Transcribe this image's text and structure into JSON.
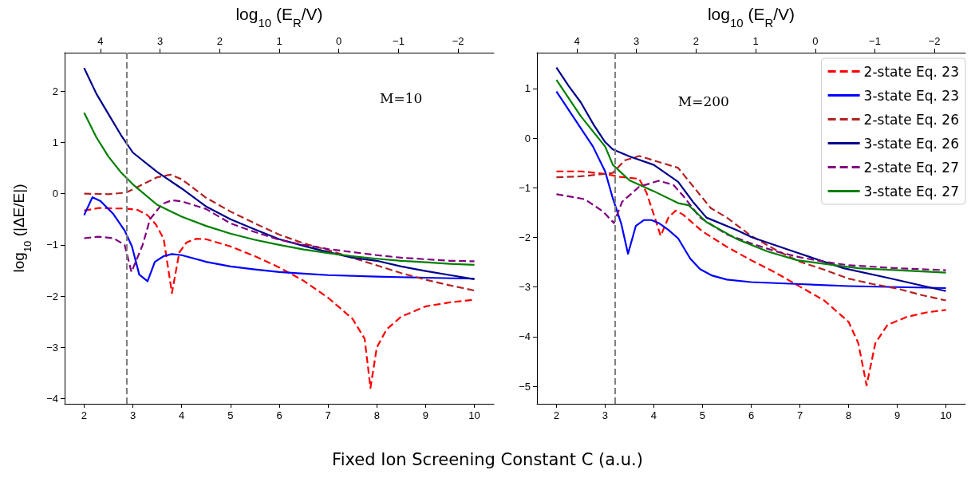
{
  "chart_data": [
    {
      "type": "line",
      "xlabel": "Fixed Ion Screening Constant C (a.u.)",
      "ylabel": "log$_{10}$ (|ΔE/E|)",
      "x2label": "log$_{10}$ (E$_{R}$/V)",
      "annotations": [
        "M=10"
      ],
      "xlim": [
        1.6,
        10.4
      ],
      "xticks": [
        2,
        3,
        4,
        5,
        6,
        7,
        8,
        9,
        10
      ],
      "x2lim": [
        4.6,
        -2.6
      ],
      "x2ticks": [
        4,
        3,
        2,
        1,
        0,
        -1,
        -2
      ],
      "ylim": [
        -4.1,
        2.75
      ],
      "yticks": [
        {
          "value": -4,
          "label": "−4"
        },
        {
          "value": -3,
          "label": "−3"
        },
        {
          "value": -2,
          "label": "−2"
        },
        {
          "value": -1,
          "label": "−1"
        },
        0,
        1,
        2
      ],
      "grid": false,
      "legend": false,
      "marker": "none",
      "ref_lines": [
        {
          "axis": "x",
          "value": 2.87,
          "color": "#808080",
          "line_style": "dashed"
        }
      ],
      "series": [
        {
          "color": "#ff0000",
          "line_style": "dashed",
          "x": [
            2,
            2.3,
            2.6,
            2.85,
            3.1,
            3.3,
            3.47,
            3.63,
            3.8,
            3.95,
            4.1,
            4.3,
            4.5,
            5,
            5.5,
            6,
            6.5,
            7,
            7.5,
            7.75,
            7.87,
            8,
            8.2,
            8.5,
            9,
            9.5,
            10
          ],
          "values": [
            -0.33,
            -0.28,
            -0.29,
            -0.29,
            -0.32,
            -0.42,
            -0.6,
            -0.88,
            -1.94,
            -1.15,
            -0.95,
            -0.88,
            -0.89,
            -1.03,
            -1.22,
            -1.44,
            -1.7,
            -2.03,
            -2.44,
            -2.83,
            -3.79,
            -3.0,
            -2.65,
            -2.4,
            -2.2,
            -2.12,
            -2.07
          ]
        },
        {
          "color": "#0000ff",
          "line_style": "solid",
          "x": [
            2,
            2.17,
            2.33,
            2.6,
            2.83,
            2.98,
            3.13,
            3.3,
            3.45,
            3.63,
            3.8,
            4,
            4.5,
            5,
            5.5,
            6,
            6.5,
            7,
            8,
            9,
            10
          ],
          "values": [
            -0.42,
            -0.07,
            -0.14,
            -0.4,
            -0.72,
            -1.03,
            -1.58,
            -1.71,
            -1.33,
            -1.22,
            -1.18,
            -1.2,
            -1.33,
            -1.42,
            -1.48,
            -1.53,
            -1.56,
            -1.59,
            -1.62,
            -1.64,
            -1.66
          ]
        },
        {
          "color": "#b22222",
          "line_style": "dashed",
          "x": [
            2,
            2.5,
            2.86,
            3.2,
            3.5,
            3.77,
            4,
            4.5,
            5,
            5.5,
            6,
            6.5,
            7,
            7.5,
            8,
            8.5,
            9,
            9.5,
            10
          ],
          "values": [
            0.0,
            -0.01,
            0.02,
            0.18,
            0.32,
            0.37,
            0.28,
            -0.08,
            -0.35,
            -0.58,
            -0.8,
            -0.97,
            -1.1,
            -1.25,
            -1.4,
            -1.55,
            -1.68,
            -1.79,
            -1.89
          ]
        },
        {
          "color": "#00008b",
          "line_style": "solid",
          "x": [
            2,
            2.25,
            2.5,
            2.75,
            3,
            3.5,
            4,
            4.5,
            5,
            5.5,
            6,
            6.5,
            7,
            7.5,
            8,
            8.5,
            9,
            9.5,
            10
          ],
          "values": [
            2.45,
            1.95,
            1.55,
            1.15,
            0.8,
            0.42,
            0.1,
            -0.25,
            -0.5,
            -0.7,
            -0.89,
            -1.02,
            -1.14,
            -1.25,
            -1.31,
            -1.42,
            -1.51,
            -1.59,
            -1.67
          ]
        },
        {
          "color": "#800080",
          "line_style": "dashed",
          "x": [
            2,
            2.3,
            2.6,
            2.83,
            2.97,
            3.2,
            3.35,
            3.6,
            3.8,
            4,
            4.5,
            5,
            5.5,
            6,
            6.5,
            7,
            7.5,
            8,
            8.5,
            9,
            9.5,
            10
          ],
          "values": [
            -0.87,
            -0.84,
            -0.87,
            -1.0,
            -1.53,
            -1.0,
            -0.5,
            -0.2,
            -0.13,
            -0.15,
            -0.3,
            -0.58,
            -0.75,
            -0.9,
            -1.0,
            -1.08,
            -1.14,
            -1.2,
            -1.25,
            -1.28,
            -1.31,
            -1.32
          ]
        },
        {
          "color": "#008000",
          "line_style": "solid",
          "x": [
            2,
            2.25,
            2.5,
            2.75,
            3,
            3.5,
            4,
            4.5,
            5,
            5.5,
            6,
            6.5,
            7,
            7.5,
            8,
            8.5,
            9,
            9.5,
            10
          ],
          "values": [
            1.58,
            1.1,
            0.72,
            0.42,
            0.18,
            -0.22,
            -0.45,
            -0.63,
            -0.78,
            -0.9,
            -1.0,
            -1.09,
            -1.16,
            -1.22,
            -1.27,
            -1.31,
            -1.34,
            -1.37,
            -1.39
          ]
        }
      ]
    },
    {
      "type": "line",
      "x2label": "log$_{10}$ (E$_{R}$/V)",
      "annotations": [
        "M=200"
      ],
      "xlim": [
        1.6,
        10.4
      ],
      "xticks": [
        2,
        3,
        4,
        5,
        6,
        7,
        8,
        9,
        10
      ],
      "x2lim": [
        4.67,
        -2.52
      ],
      "x2ticks": [
        4,
        3,
        2,
        1,
        0,
        -1,
        -2
      ],
      "ylim": [
        -5.35,
        1.72
      ],
      "yticks": [
        {
          "value": -5,
          "label": "−5"
        },
        {
          "value": -4,
          "label": "−4"
        },
        {
          "value": -3,
          "label": "−3"
        },
        {
          "value": -2,
          "label": "−2"
        },
        {
          "value": -1,
          "label": "−1"
        },
        0,
        1
      ],
      "grid": false,
      "legend": "top right",
      "marker": "none",
      "ref_lines": [
        {
          "axis": "x",
          "value": 3.2,
          "color": "#808080",
          "line_style": "dashed"
        }
      ],
      "series": [
        {
          "name": "2-state Eq. 23",
          "color": "#ff0000",
          "line_style": "dashed",
          "x": [
            2,
            2.5,
            3,
            3.3,
            3.7,
            3.85,
            4,
            4.14,
            4.3,
            4.45,
            4.6,
            5,
            5.5,
            6,
            6.5,
            7,
            7.5,
            8,
            8.2,
            8.37,
            8.55,
            8.8,
            9.2,
            9.6,
            10
          ],
          "values": [
            -0.67,
            -0.67,
            -0.72,
            -0.78,
            -0.82,
            -1.1,
            -1.54,
            -1.97,
            -1.6,
            -1.46,
            -1.54,
            -1.88,
            -2.19,
            -2.46,
            -2.71,
            -2.99,
            -3.27,
            -3.7,
            -4.13,
            -4.98,
            -4.13,
            -3.76,
            -3.6,
            -3.51,
            -3.46
          ]
        },
        {
          "name": "3-state Eq. 23",
          "color": "#0000ff",
          "line_style": "solid",
          "x": [
            2,
            2.5,
            2.75,
            3,
            3.16,
            3.33,
            3.47,
            3.63,
            3.8,
            3.95,
            4.1,
            4.3,
            4.5,
            4.75,
            4.95,
            5.2,
            5.5,
            6,
            7,
            8,
            9,
            10
          ],
          "values": [
            0.94,
            0.2,
            -0.17,
            -0.67,
            -1.22,
            -1.72,
            -2.33,
            -1.77,
            -1.65,
            -1.65,
            -1.71,
            -1.85,
            -2.02,
            -2.43,
            -2.64,
            -2.77,
            -2.85,
            -2.9,
            -2.94,
            -2.98,
            -3.0,
            -3.02
          ]
        },
        {
          "name": "2-state Eq. 26",
          "color": "#b22222",
          "line_style": "dashed",
          "x": [
            2,
            2.5,
            3,
            3.16,
            3.4,
            3.7,
            4,
            4.5,
            5.17,
            5.5,
            6,
            6.5,
            7,
            7.5,
            8,
            8.5,
            9,
            9.5,
            10
          ],
          "values": [
            -0.79,
            -0.77,
            -0.72,
            -0.7,
            -0.45,
            -0.36,
            -0.45,
            -0.6,
            -1.41,
            -1.6,
            -1.97,
            -2.25,
            -2.49,
            -2.65,
            -2.83,
            -2.94,
            -3.03,
            -3.16,
            -3.27
          ]
        },
        {
          "name": "3-state Eq. 26",
          "color": "#00008b",
          "line_style": "solid",
          "x": [
            2,
            2.25,
            2.5,
            2.77,
            3,
            3.16,
            3.5,
            4,
            4.5,
            4.8,
            5.08,
            5.7,
            6.02,
            6.95,
            7.9,
            8.83,
            10
          ],
          "values": [
            1.42,
            1.05,
            0.72,
            0.26,
            -0.08,
            -0.23,
            -0.37,
            -0.54,
            -0.88,
            -1.28,
            -1.6,
            -1.85,
            -2.0,
            -2.31,
            -2.62,
            -2.82,
            -3.08
          ]
        },
        {
          "name": "2-state Eq. 27",
          "color": "#800080",
          "line_style": "dashed",
          "x": [
            2,
            2.58,
            2.96,
            3.18,
            3.35,
            3.7,
            4.1,
            4.4,
            4.6,
            4.95,
            5.5,
            6,
            6.5,
            7,
            7.5,
            8,
            9,
            10
          ],
          "values": [
            -1.13,
            -1.23,
            -1.48,
            -1.71,
            -1.28,
            -0.98,
            -0.86,
            -0.94,
            -1.16,
            -1.6,
            -1.94,
            -2.12,
            -2.28,
            -2.4,
            -2.49,
            -2.56,
            -2.62,
            -2.66
          ]
        },
        {
          "name": "3-state Eq. 27",
          "color": "#008000",
          "line_style": "solid",
          "x": [
            2,
            2.5,
            3,
            3.16,
            3.5,
            4,
            4.5,
            4.71,
            5.08,
            5.7,
            6.33,
            6.95,
            8.2,
            10
          ],
          "values": [
            1.17,
            0.44,
            -0.17,
            -0.54,
            -0.85,
            -1.07,
            -1.31,
            -1.35,
            -1.69,
            -2.03,
            -2.28,
            -2.46,
            -2.62,
            -2.71
          ]
        }
      ]
    }
  ]
}
